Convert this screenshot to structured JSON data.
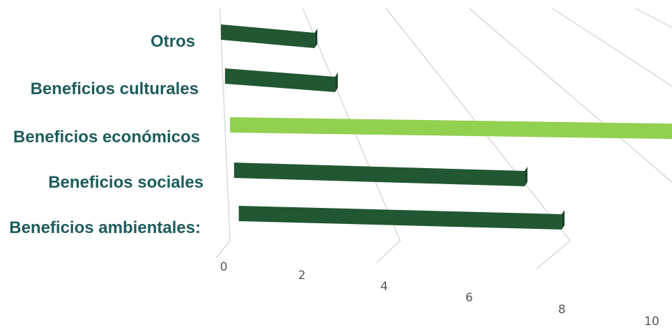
{
  "chart_data": {
    "type": "bar",
    "orientation": "horizontal",
    "style": "3d",
    "categories": [
      "Otros",
      "Beneficios culturales",
      "Beneficios económicos",
      "Beneficios sociales",
      "Beneficios ambientales:"
    ],
    "values": [
      2,
      2,
      9,
      4,
      4
    ],
    "xlim": [
      0,
      10
    ],
    "x_ticks": [
      "0",
      "2",
      "4",
      "6",
      "8",
      "10"
    ],
    "grid": true,
    "title": "",
    "xlabel": "",
    "ylabel": ""
  },
  "colors": {
    "label": "#1f5c5c",
    "bar_default": "#215732",
    "bar_highlight": "#92d050",
    "gridline": "#d9d9d9"
  },
  "highlight_index": 2
}
